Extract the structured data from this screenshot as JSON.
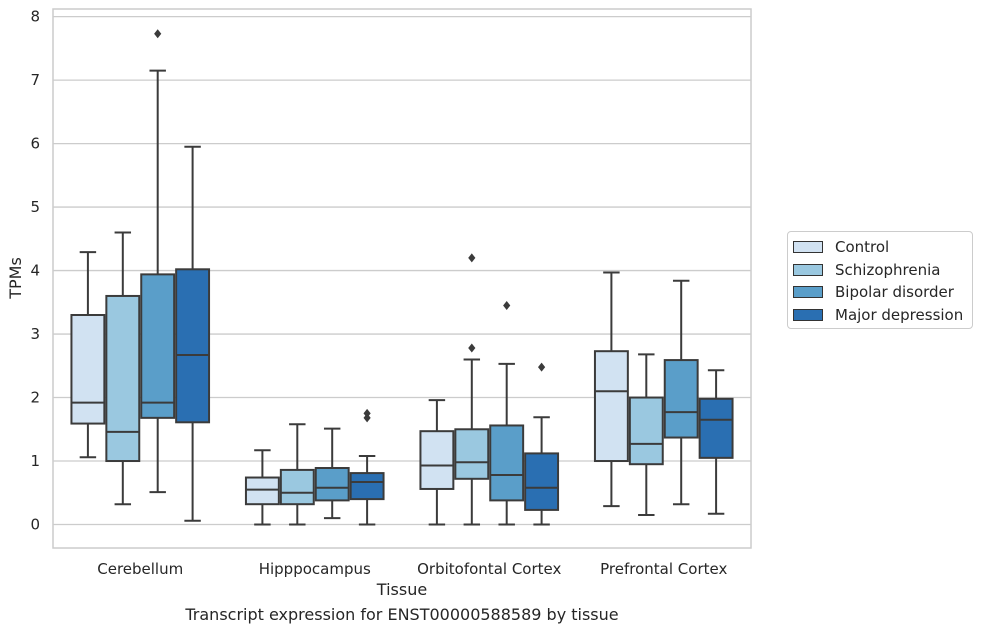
{
  "chart_data": {
    "type": "box",
    "title": "",
    "xlabel": "Tissue",
    "ylabel": "TPMs",
    "caption": "Transcript expression for ENST00000588589 by tissue",
    "ylim": [
      -0.37,
      8.12
    ],
    "yticks": [
      "0",
      "1",
      "2",
      "3",
      "4",
      "5",
      "6",
      "7",
      "8"
    ],
    "categories": [
      "Cerebellum",
      "Hipppocampus",
      "Orbitofontal Cortex",
      "Prefrontal Cortex"
    ],
    "grid": "horizontal",
    "legend_position": "right",
    "series": [
      {
        "name": "Control",
        "color": "#d1e2f2",
        "boxes": [
          {
            "whislo": 1.06,
            "q1": 1.59,
            "med": 1.92,
            "q3": 3.3,
            "whishi": 4.29,
            "fliers": []
          },
          {
            "whislo": 0.0,
            "q1": 0.32,
            "med": 0.55,
            "q3": 0.74,
            "whishi": 1.17,
            "fliers": []
          },
          {
            "whislo": 0.0,
            "q1": 0.56,
            "med": 0.93,
            "q3": 1.47,
            "whishi": 1.96,
            "fliers": []
          },
          {
            "whislo": 0.29,
            "q1": 1.0,
            "med": 2.1,
            "q3": 2.73,
            "whishi": 3.97,
            "fliers": []
          }
        ]
      },
      {
        "name": "Schizophrenia",
        "color": "#9ac8e0",
        "boxes": [
          {
            "whislo": 0.32,
            "q1": 1.0,
            "med": 1.46,
            "q3": 3.6,
            "whishi": 4.6,
            "fliers": []
          },
          {
            "whislo": 0.0,
            "q1": 0.32,
            "med": 0.5,
            "q3": 0.86,
            "whishi": 1.58,
            "fliers": []
          },
          {
            "whislo": 0.0,
            "q1": 0.72,
            "med": 0.98,
            "q3": 1.5,
            "whishi": 2.6,
            "fliers": [
              2.78,
              4.2
            ]
          },
          {
            "whislo": 0.15,
            "q1": 0.95,
            "med": 1.27,
            "q3": 2.0,
            "whishi": 2.68,
            "fliers": []
          }
        ]
      },
      {
        "name": "Bipolar disorder",
        "color": "#5a9ec9",
        "boxes": [
          {
            "whislo": 0.51,
            "q1": 1.68,
            "med": 1.92,
            "q3": 3.94,
            "whishi": 7.15,
            "fliers": [
              7.73
            ]
          },
          {
            "whislo": 0.1,
            "q1": 0.38,
            "med": 0.58,
            "q3": 0.89,
            "whishi": 1.51,
            "fliers": []
          },
          {
            "whislo": 0.0,
            "q1": 0.38,
            "med": 0.78,
            "q3": 1.56,
            "whishi": 2.53,
            "fliers": [
              3.45
            ]
          },
          {
            "whislo": 0.32,
            "q1": 1.37,
            "med": 1.77,
            "q3": 2.59,
            "whishi": 3.84,
            "fliers": []
          }
        ]
      },
      {
        "name": "Major depression",
        "color": "#2a6fb2",
        "boxes": [
          {
            "whislo": 0.06,
            "q1": 1.61,
            "med": 2.67,
            "q3": 4.02,
            "whishi": 5.95,
            "fliers": []
          },
          {
            "whislo": 0.0,
            "q1": 0.4,
            "med": 0.67,
            "q3": 0.81,
            "whishi": 1.08,
            "fliers": [
              1.68,
              1.75
            ]
          },
          {
            "whislo": 0.0,
            "q1": 0.23,
            "med": 0.58,
            "q3": 1.12,
            "whishi": 1.69,
            "fliers": [
              2.48
            ]
          },
          {
            "whislo": 0.17,
            "q1": 1.05,
            "med": 1.65,
            "q3": 1.98,
            "whishi": 2.43,
            "fliers": []
          }
        ]
      }
    ]
  }
}
